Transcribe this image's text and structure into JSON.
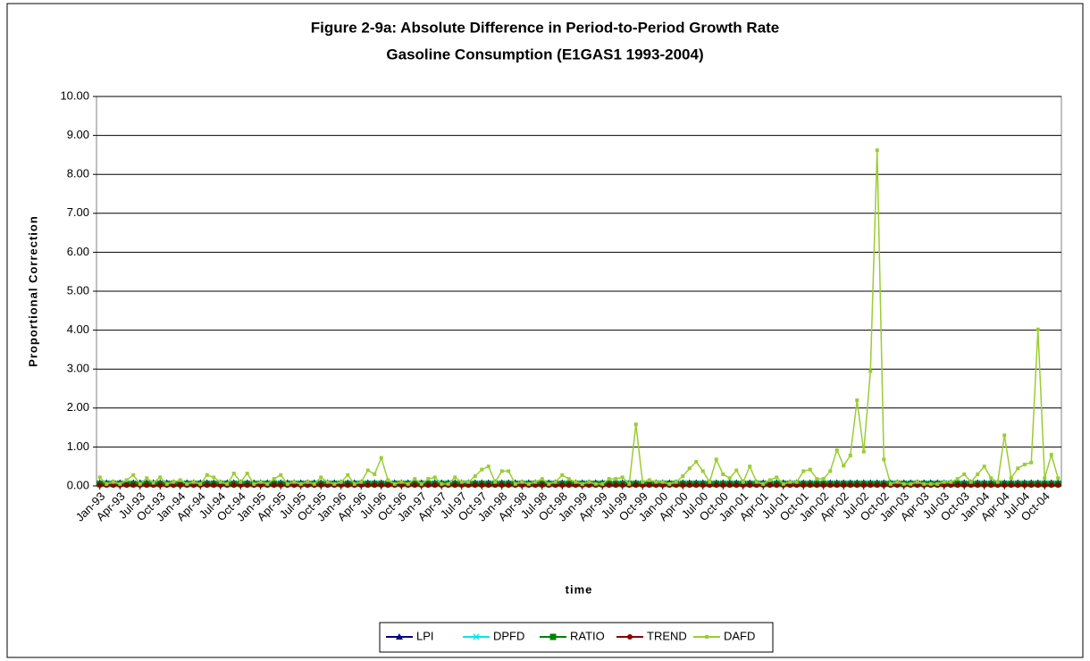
{
  "chart_data": {
    "type": "line",
    "title": "Figure 2-9a: Absolute Difference in Period-to-Period Growth Rate",
    "subtitle": "Gasoline Consumption (E1GAS1 1993-2004)",
    "x_label": "time",
    "y_label": "Proportional Correction",
    "categories": [
      "Jan-93",
      null,
      null,
      "Apr-93",
      null,
      null,
      "Jul-93",
      null,
      null,
      "Oct-93",
      null,
      null,
      "Jan-94",
      null,
      null,
      "Apr-94",
      null,
      null,
      "Jul-94",
      null,
      null,
      "Oct-94",
      null,
      null,
      "Jan-95",
      null,
      null,
      "Apr-95",
      null,
      null,
      "Jul-95",
      null,
      null,
      "Oct-95",
      null,
      null,
      "Jan-96",
      null,
      null,
      "Apr-96",
      null,
      null,
      "Jul-96",
      null,
      null,
      "Oct-96",
      null,
      null,
      "Jan-97",
      null,
      null,
      "Apr-97",
      null,
      null,
      "Jul-97",
      null,
      null,
      "Oct-97",
      null,
      null,
      "Jan-98",
      null,
      null,
      "Apr-98",
      null,
      null,
      "Jul-98",
      null,
      null,
      "Oct-98",
      null,
      null,
      "Jan-99",
      null,
      null,
      "Apr-99",
      null,
      null,
      "Jul-99",
      null,
      null,
      "Oct-99",
      null,
      null,
      "Jan-00",
      null,
      null,
      "Apr-00",
      null,
      null,
      "Jul-00",
      null,
      null,
      "Oct-00",
      null,
      null,
      "Jan-01",
      null,
      null,
      "Apr-01",
      null,
      null,
      "Jul-01",
      null,
      null,
      "Oct-01",
      null,
      null,
      "Jan-02",
      null,
      null,
      "Apr-02",
      null,
      null,
      "Jul-02",
      null,
      null,
      "Oct-02",
      null,
      null,
      "Jan-03",
      null,
      null,
      "Apr-03",
      null,
      null,
      "Jul-03",
      null,
      null,
      "Oct-03",
      null,
      null,
      "Jan-04",
      null,
      null,
      "Apr-04",
      null,
      null,
      "Jul-04",
      null,
      null,
      "Oct-04",
      null,
      null
    ],
    "series": [
      {
        "name": "LPI",
        "color": "#000080",
        "marker": "triangle",
        "values": [
          0.08,
          0.08,
          0.08,
          0.08,
          0.08,
          0.08,
          0.08,
          0.08,
          0.08,
          0.08,
          0.08,
          0.08,
          0.08,
          0.08,
          0.08,
          0.08,
          0.08,
          0.08,
          0.08,
          0.08,
          0.08,
          0.08,
          0.08,
          0.08,
          0.08,
          0.08,
          0.08,
          0.08,
          0.08,
          0.08,
          0.08,
          0.08,
          0.08,
          0.08,
          0.08,
          0.08,
          0.08,
          0.08,
          0.08,
          0.08,
          0.08,
          0.08,
          0.08,
          0.08,
          0.08,
          0.08,
          0.08,
          0.08,
          0.08,
          0.08,
          0.08,
          0.08,
          0.08,
          0.08,
          0.08,
          0.08,
          0.08,
          0.08,
          0.08,
          0.08,
          0.08,
          0.08,
          0.08,
          0.08,
          0.08,
          0.08,
          0.08,
          0.08,
          0.08,
          0.08,
          0.08,
          0.08,
          0.08,
          0.08,
          0.08,
          0.08,
          0.08,
          0.08,
          0.08,
          0.08,
          0.08,
          0.08,
          0.08,
          0.08,
          0.08,
          0.08,
          0.08,
          0.08,
          0.08,
          0.08,
          0.08,
          0.08,
          0.08,
          0.08,
          0.08,
          0.08,
          0.08,
          0.08,
          0.08,
          0.08,
          0.08,
          0.08,
          0.08,
          0.08,
          0.08,
          0.08,
          0.08,
          0.08,
          0.08,
          0.08,
          0.08,
          0.08,
          0.08,
          0.08,
          0.08,
          0.08,
          0.08,
          0.08,
          0.08,
          0.08,
          0.08,
          0.08,
          0.08,
          0.08,
          0.08,
          0.08,
          0.08,
          0.08,
          0.08,
          0.08,
          0.08,
          0.08,
          0.08,
          0.08,
          0.08,
          0.08,
          0.08,
          0.08,
          0.08,
          0.08,
          0.08,
          0.08,
          0.08,
          0.08
        ]
      },
      {
        "name": "DPFD",
        "color": "#00e5ee",
        "marker": "cross",
        "values": [
          0.07,
          0.07,
          0.07,
          0.07,
          0.07,
          0.07,
          0.07,
          0.07,
          0.07,
          0.07,
          0.07,
          0.07,
          0.07,
          0.07,
          0.07,
          0.07,
          0.07,
          0.07,
          0.07,
          0.07,
          0.07,
          0.07,
          0.07,
          0.07,
          0.07,
          0.07,
          0.07,
          0.07,
          0.07,
          0.07,
          0.07,
          0.07,
          0.07,
          0.07,
          0.07,
          0.07,
          0.07,
          0.07,
          0.07,
          0.07,
          0.07,
          0.07,
          0.07,
          0.07,
          0.07,
          0.07,
          0.07,
          0.07,
          0.07,
          0.07,
          0.07,
          0.07,
          0.07,
          0.07,
          0.07,
          0.07,
          0.07,
          0.07,
          0.07,
          0.07,
          0.07,
          0.07,
          0.07,
          0.07,
          0.07,
          0.07,
          0.07,
          0.07,
          0.07,
          0.07,
          0.07,
          0.07,
          0.07,
          0.07,
          0.07,
          0.07,
          0.07,
          0.07,
          0.07,
          0.07,
          0.07,
          0.07,
          0.07,
          0.07,
          0.07,
          0.07,
          0.07,
          0.07,
          0.07,
          0.07,
          0.07,
          0.07,
          0.07,
          0.07,
          0.07,
          0.07,
          0.07,
          0.07,
          0.07,
          0.07,
          0.07,
          0.07,
          0.07,
          0.07,
          0.07,
          0.07,
          0.07,
          0.07,
          0.07,
          0.07,
          0.07,
          0.07,
          0.07,
          0.07,
          0.07,
          0.07,
          0.07,
          0.07,
          0.07,
          0.07,
          0.07,
          0.07,
          0.07,
          0.07,
          0.07,
          0.07,
          0.07,
          0.07,
          0.07,
          0.07,
          0.07,
          0.07,
          0.07,
          0.07,
          0.07,
          0.07,
          0.07,
          0.07,
          0.07,
          0.07,
          0.07,
          0.07,
          0.07,
          0.07
        ]
      },
      {
        "name": "RATIO",
        "color": "#008000",
        "marker": "square",
        "values": [
          0.05,
          0.05,
          0.05,
          0.05,
          0.05,
          0.05,
          0.05,
          0.05,
          0.05,
          0.05,
          0.05,
          0.05,
          0.05,
          0.05,
          0.05,
          0.05,
          0.05,
          0.05,
          0.05,
          0.05,
          0.05,
          0.05,
          0.05,
          0.05,
          0.05,
          0.05,
          0.05,
          0.05,
          0.05,
          0.05,
          0.05,
          0.05,
          0.05,
          0.05,
          0.05,
          0.05,
          0.05,
          0.05,
          0.05,
          0.05,
          0.05,
          0.05,
          0.05,
          0.05,
          0.05,
          0.05,
          0.05,
          0.05,
          0.05,
          0.05,
          0.05,
          0.05,
          0.05,
          0.05,
          0.05,
          0.05,
          0.05,
          0.05,
          0.05,
          0.05,
          0.05,
          0.05,
          0.05,
          0.05,
          0.05,
          0.05,
          0.05,
          0.05,
          0.05,
          0.05,
          0.05,
          0.05,
          0.05,
          0.05,
          0.05,
          0.05,
          0.05,
          0.05,
          0.05,
          0.05,
          0.05,
          0.05,
          0.05,
          0.05,
          0.05,
          0.05,
          0.05,
          0.05,
          0.05,
          0.05,
          0.05,
          0.05,
          0.05,
          0.05,
          0.05,
          0.05,
          0.05,
          0.05,
          0.05,
          0.05,
          0.05,
          0.05,
          0.05,
          0.05,
          0.05,
          0.05,
          0.05,
          0.05,
          0.05,
          0.05,
          0.05,
          0.05,
          0.05,
          0.05,
          0.05,
          0.05,
          0.05,
          0.05,
          0.05,
          0.05,
          0.05,
          0.05,
          0.05,
          0.05,
          0.05,
          0.05,
          0.05,
          0.05,
          0.05,
          0.05,
          0.05,
          0.05,
          0.05,
          0.05,
          0.05,
          0.05,
          0.05,
          0.05,
          0.05,
          0.05,
          0.05,
          0.05,
          0.05,
          0.05
        ]
      },
      {
        "name": "TREND",
        "color": "#8b0000",
        "marker": "circle",
        "values": [
          0.02,
          0.02,
          0.02,
          0.02,
          0.02,
          0.02,
          0.02,
          0.02,
          0.02,
          0.02,
          0.02,
          0.02,
          0.02,
          0.02,
          0.02,
          0.02,
          0.02,
          0.02,
          0.02,
          0.02,
          0.02,
          0.02,
          0.02,
          0.02,
          0.02,
          0.02,
          0.02,
          0.02,
          0.02,
          0.02,
          0.02,
          0.02,
          0.02,
          0.02,
          0.02,
          0.02,
          0.02,
          0.02,
          0.02,
          0.02,
          0.02,
          0.02,
          0.02,
          0.02,
          0.02,
          0.02,
          0.02,
          0.02,
          0.02,
          0.02,
          0.02,
          0.02,
          0.02,
          0.02,
          0.02,
          0.02,
          0.02,
          0.02,
          0.02,
          0.02,
          0.02,
          0.02,
          0.02,
          0.02,
          0.02,
          0.02,
          0.02,
          0.02,
          0.02,
          0.02,
          0.02,
          0.02,
          0.02,
          0.02,
          0.02,
          0.02,
          0.02,
          0.02,
          0.02,
          0.02,
          0.02,
          0.02,
          0.02,
          0.02,
          0.02,
          0.02,
          0.02,
          0.02,
          0.02,
          0.02,
          0.02,
          0.02,
          0.02,
          0.02,
          0.02,
          0.02,
          0.02,
          0.02,
          0.02,
          0.02,
          0.02,
          0.02,
          0.02,
          0.02,
          0.02,
          0.02,
          0.02,
          0.02,
          0.02,
          0.02,
          0.02,
          0.02,
          0.02,
          0.02,
          0.02,
          0.02,
          0.02,
          0.02,
          0.02,
          0.02,
          0.02,
          0.02,
          0.02,
          0.02,
          0.02,
          0.02,
          0.02,
          0.02,
          0.02,
          0.02,
          0.02,
          0.02,
          0.02,
          0.02,
          0.02,
          0.02,
          0.02,
          0.02,
          0.02,
          0.02,
          0.02,
          0.02,
          0.02,
          0.02
        ]
      },
      {
        "name": "DAFD",
        "color": "#9acd32",
        "marker": "dot",
        "values": [
          0.22,
          0.05,
          0.1,
          0.05,
          0.15,
          0.28,
          0.05,
          0.2,
          0.08,
          0.22,
          0.05,
          0.1,
          0.15,
          0.05,
          0.1,
          0.05,
          0.28,
          0.22,
          0.1,
          0.05,
          0.32,
          0.1,
          0.32,
          0.05,
          0.1,
          0.05,
          0.18,
          0.28,
          0.05,
          0.1,
          0.05,
          0.1,
          0.05,
          0.22,
          0.1,
          0.05,
          0.1,
          0.28,
          0.05,
          0.1,
          0.4,
          0.3,
          0.72,
          0.15,
          0.05,
          0.1,
          0.05,
          0.18,
          0.05,
          0.18,
          0.22,
          0.05,
          0.05,
          0.22,
          0.1,
          0.1,
          0.25,
          0.42,
          0.5,
          0.1,
          0.38,
          0.38,
          0.05,
          0.1,
          0.05,
          0.1,
          0.18,
          0.05,
          0.1,
          0.28,
          0.18,
          0.1,
          0.05,
          0.1,
          0.05,
          0.05,
          0.18,
          0.18,
          0.22,
          0.05,
          1.58,
          0.1,
          0.15,
          0.1,
          0.1,
          0.05,
          0.1,
          0.25,
          0.45,
          0.62,
          0.38,
          0.1,
          0.68,
          0.3,
          0.2,
          0.4,
          0.1,
          0.5,
          0.1,
          0.05,
          0.15,
          0.22,
          0.05,
          0.1,
          0.1,
          0.38,
          0.42,
          0.18,
          0.18,
          0.38,
          0.92,
          0.52,
          0.78,
          2.2,
          0.88,
          2.95,
          8.62,
          0.68,
          0.05,
          0.1,
          0.05,
          0.05,
          0.1,
          0.05,
          0.05,
          0.05,
          0.1,
          0.1,
          0.18,
          0.3,
          0.1,
          0.3,
          0.5,
          0.2,
          0.1,
          1.3,
          0.2,
          0.45,
          0.55,
          0.6,
          4.02,
          0.2,
          0.8,
          0.2
        ]
      }
    ],
    "ylim": [
      0,
      10
    ],
    "yticks": [
      {
        "value": 0,
        "label": "0.00"
      },
      {
        "value": 1,
        "label": "1.00"
      },
      {
        "value": 2,
        "label": "2.00"
      },
      {
        "value": 3,
        "label": "3.00"
      },
      {
        "value": 4,
        "label": "4.00"
      },
      {
        "value": 5,
        "label": "5.00"
      },
      {
        "value": 6,
        "label": "6.00"
      },
      {
        "value": 7,
        "label": "7.00"
      },
      {
        "value": 8,
        "label": "8.00"
      },
      {
        "value": 9,
        "label": "9.00"
      },
      {
        "value": 10,
        "label": "10.00"
      }
    ],
    "grid": true,
    "legend": "bottom"
  }
}
